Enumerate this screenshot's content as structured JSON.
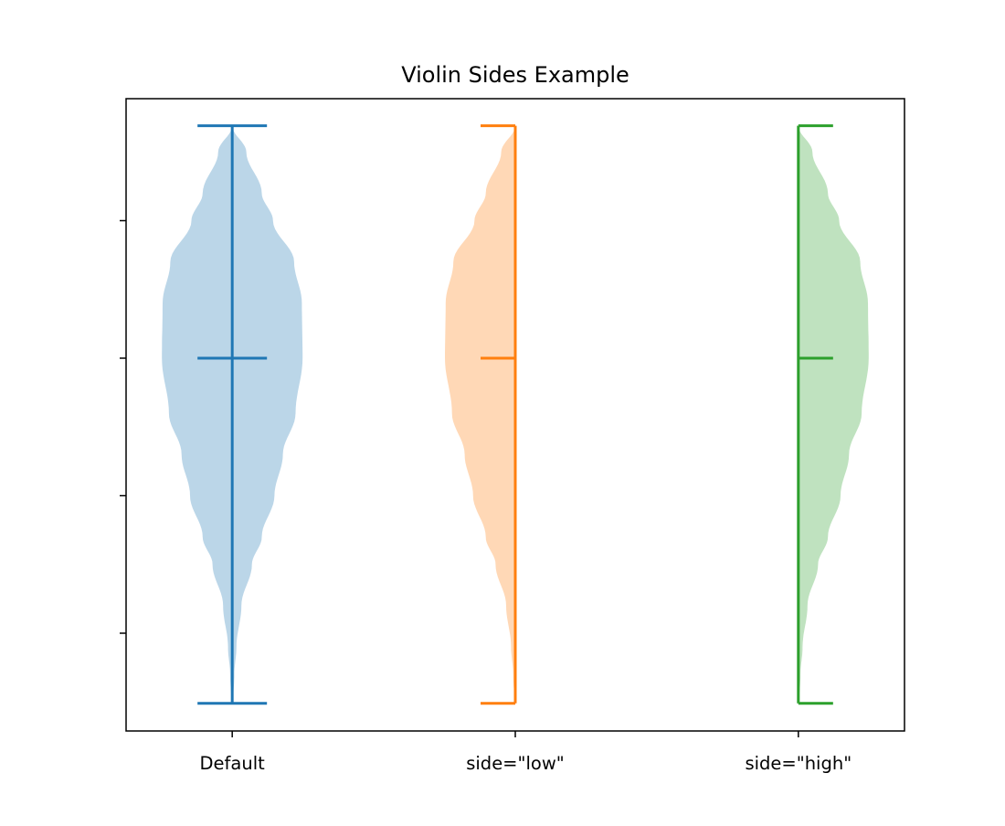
{
  "chart_data": {
    "type": "violin",
    "title": "Violin Sides Example",
    "xlabel": "",
    "ylabel": "",
    "categories": [
      "Default",
      "side=\"low\"",
      "side=\"high\""
    ],
    "x_positions": [
      1,
      2,
      3
    ],
    "xlim": [
      0.625,
      3.375
    ],
    "ylim": [
      -2.711,
      1.887
    ],
    "yticks": [
      -2,
      -1,
      0,
      1
    ],
    "ytick_labels": [
      "",
      "",
      "",
      ""
    ],
    "grid": false,
    "series": [
      {
        "side": "both",
        "color": "#1f77b4",
        "min": -2.51,
        "median": 0,
        "max": 1.69
      },
      {
        "side": "low",
        "color": "#ff7f0e",
        "min": -2.51,
        "median": 0,
        "max": 1.69
      },
      {
        "side": "high",
        "color": "#2ca02c",
        "min": -2.51,
        "median": 0,
        "max": 1.69
      }
    ],
    "density_profile": {
      "y": [
        1.69,
        1.5,
        1.2,
        1.0,
        0.7,
        0.4,
        0.0,
        -0.4,
        -0.7,
        -1.0,
        -1.3,
        -1.5,
        -1.8,
        -2.1,
        -2.3,
        -2.51
      ],
      "relative_width": [
        0.0,
        0.2,
        0.42,
        0.58,
        0.88,
        0.99,
        1.0,
        0.9,
        0.72,
        0.6,
        0.42,
        0.28,
        0.13,
        0.06,
        0.03,
        0.01
      ]
    },
    "fill_alpha": 0.3
  }
}
